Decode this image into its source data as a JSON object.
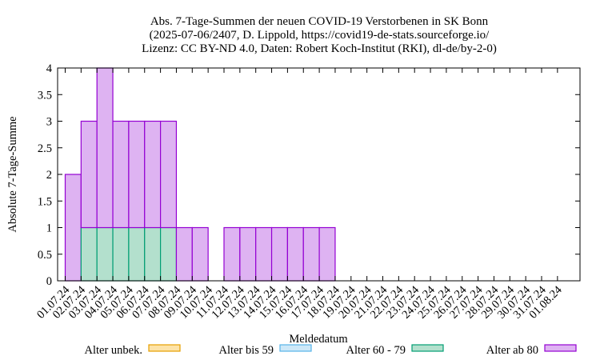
{
  "chart_data": {
    "type": "bar",
    "stacked": true,
    "title_lines": [
      "Abs. 7-Tage-Summen der neuen COVID-19 Verstorbenen in SK Bonn",
      "(2025-07-06/2407, D. Lippold, https://covid19-de-stats.sourceforge.io/",
      "Lizenz: CC BY-ND 4.0, Daten: Robert Koch-Institut (RKI), dl-de/by-2-0)"
    ],
    "xlabel": "Meldedatum",
    "ylabel": "Absolute 7-Tage-Summe",
    "ylim": [
      0,
      4
    ],
    "yticks": [
      "0",
      "0.5",
      "1",
      "1.5",
      "2",
      "2.5",
      "3",
      "3.5",
      "4"
    ],
    "grid": false,
    "legend_position": "bottom",
    "categories": [
      "01.07.24",
      "02.07.24",
      "03.07.24",
      "04.07.24",
      "05.07.24",
      "06.07.24",
      "07.07.24",
      "08.07.24",
      "09.07.24",
      "10.07.24",
      "11.07.24",
      "12.07.24",
      "13.07.24",
      "14.07.24",
      "15.07.24",
      "16.07.24",
      "17.07.24",
      "18.07.24",
      "19.07.24",
      "20.07.24",
      "21.07.24",
      "22.07.24",
      "23.07.24",
      "24.07.24",
      "25.07.24",
      "26.07.24",
      "27.07.24",
      "28.07.24",
      "29.07.24",
      "30.07.24",
      "31.07.24",
      "01.08.24"
    ],
    "series": [
      {
        "name": "Alter unbek.",
        "fill": "#fde3a7",
        "stroke": "#e69f00",
        "values": [
          0,
          0,
          0,
          0,
          0,
          0,
          0,
          0,
          0,
          0,
          0,
          0,
          0,
          0,
          0,
          0,
          0,
          0,
          0,
          0,
          0,
          0,
          0,
          0,
          0,
          0,
          0,
          0,
          0,
          0,
          0,
          0
        ]
      },
      {
        "name": "Alter bis 59",
        "fill": "#cde8f8",
        "stroke": "#56b4e9",
        "values": [
          0,
          0,
          0,
          0,
          0,
          0,
          0,
          0,
          0,
          0,
          0,
          0,
          0,
          0,
          0,
          0,
          0,
          0,
          0,
          0,
          0,
          0,
          0,
          0,
          0,
          0,
          0,
          0,
          0,
          0,
          0,
          0
        ]
      },
      {
        "name": "Alter 60 - 79",
        "fill": "#b3e0cd",
        "stroke": "#009e73",
        "values": [
          0,
          1,
          1,
          1,
          1,
          1,
          1,
          0,
          0,
          0,
          0,
          0,
          0,
          0,
          0,
          0,
          0,
          0,
          0,
          0,
          0,
          0,
          0,
          0,
          0,
          0,
          0,
          0,
          0,
          0,
          0,
          0
        ]
      },
      {
        "name": "Alter ab 80",
        "fill": "#deb3f2",
        "stroke": "#9400d3",
        "values": [
          2,
          2,
          3,
          2,
          2,
          2,
          2,
          1,
          1,
          0,
          1,
          1,
          1,
          1,
          1,
          1,
          1,
          0,
          0,
          0,
          0,
          0,
          0,
          0,
          0,
          0,
          0,
          0,
          0,
          0,
          0,
          0
        ]
      }
    ]
  }
}
